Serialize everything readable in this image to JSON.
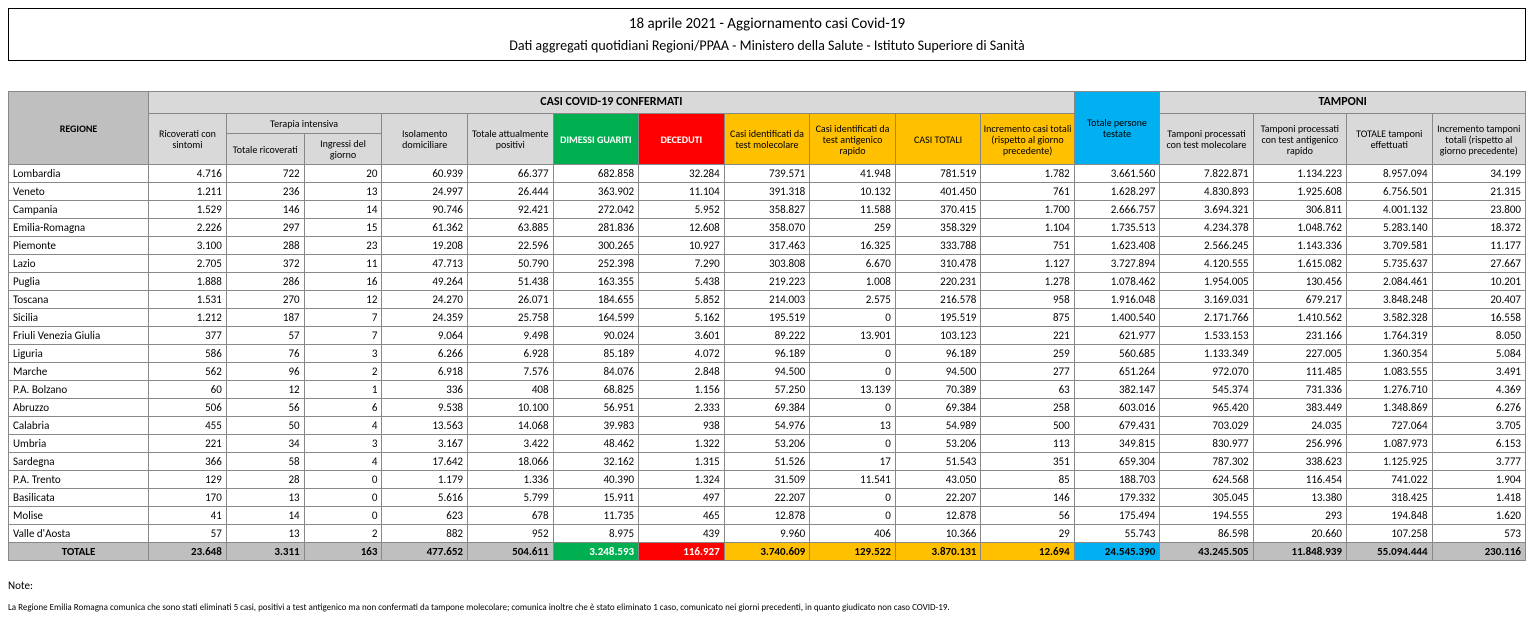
{
  "header": {
    "title": "18 aprile 2021 - Aggiornamento casi Covid-19",
    "subtitle": "Dati aggregati quotidiani Regioni/PPAA - Ministero della Salute - Istituto Superiore di Sanità"
  },
  "columns": {
    "regione_label": "REGIONE",
    "group_casi": "CASI COVID-19 CONFERMATI",
    "group_tamponi": "TAMPONI",
    "terapia_intensiva": "Terapia intensiva",
    "ricoverati": "Ricoverati con sintomi",
    "ti_totale": "Totale ricoverati",
    "ti_ingressi": "Ingressi del giorno",
    "isolamento": "Isolamento domiciliare",
    "positivi": "Totale attualmente positivi",
    "dimessi": "DIMESSI GUARITI",
    "deceduti": "DECEDUTI",
    "casi_mol": "Casi identificati da test molecolare",
    "casi_ant": "Casi identificati da test antigenico rapido",
    "casi_tot": "CASI TOTALI",
    "incremento": "Incremento casi totali (rispetto al giorno precedente)",
    "persone": "Totale persone testate",
    "tamp_mol": "Tamponi processati con test molecolare",
    "tamp_ant": "Tamponi processati con test antigenico rapido",
    "tamp_tot": "TOTALE tamponi effettuati",
    "tamp_inc": "Incremento tamponi totali (rispetto al giorno precedente)"
  },
  "rows": [
    {
      "region": "Lombardia",
      "v": [
        "4.716",
        "722",
        "20",
        "60.939",
        "66.377",
        "682.858",
        "32.284",
        "739.571",
        "41.948",
        "781.519",
        "1.782",
        "3.661.560",
        "7.822.871",
        "1.134.223",
        "8.957.094",
        "34.199"
      ]
    },
    {
      "region": "Veneto",
      "v": [
        "1.211",
        "236",
        "13",
        "24.997",
        "26.444",
        "363.902",
        "11.104",
        "391.318",
        "10.132",
        "401.450",
        "761",
        "1.628.297",
        "4.830.893",
        "1.925.608",
        "6.756.501",
        "21.315"
      ]
    },
    {
      "region": "Campania",
      "v": [
        "1.529",
        "146",
        "14",
        "90.746",
        "92.421",
        "272.042",
        "5.952",
        "358.827",
        "11.588",
        "370.415",
        "1.700",
        "2.666.757",
        "3.694.321",
        "306.811",
        "4.001.132",
        "23.800"
      ]
    },
    {
      "region": "Emilia-Romagna",
      "v": [
        "2.226",
        "297",
        "15",
        "61.362",
        "63.885",
        "281.836",
        "12.608",
        "358.070",
        "259",
        "358.329",
        "1.104",
        "1.735.513",
        "4.234.378",
        "1.048.762",
        "5.283.140",
        "18.372"
      ]
    },
    {
      "region": "Piemonte",
      "v": [
        "3.100",
        "288",
        "23",
        "19.208",
        "22.596",
        "300.265",
        "10.927",
        "317.463",
        "16.325",
        "333.788",
        "751",
        "1.623.408",
        "2.566.245",
        "1.143.336",
        "3.709.581",
        "11.177"
      ]
    },
    {
      "region": "Lazio",
      "v": [
        "2.705",
        "372",
        "11",
        "47.713",
        "50.790",
        "252.398",
        "7.290",
        "303.808",
        "6.670",
        "310.478",
        "1.127",
        "3.727.894",
        "4.120.555",
        "1.615.082",
        "5.735.637",
        "27.667"
      ]
    },
    {
      "region": "Puglia",
      "v": [
        "1.888",
        "286",
        "16",
        "49.264",
        "51.438",
        "163.355",
        "5.438",
        "219.223",
        "1.008",
        "220.231",
        "1.278",
        "1.078.462",
        "1.954.005",
        "130.456",
        "2.084.461",
        "10.201"
      ]
    },
    {
      "region": "Toscana",
      "v": [
        "1.531",
        "270",
        "12",
        "24.270",
        "26.071",
        "184.655",
        "5.852",
        "214.003",
        "2.575",
        "216.578",
        "958",
        "1.916.048",
        "3.169.031",
        "679.217",
        "3.848.248",
        "20.407"
      ]
    },
    {
      "region": "Sicilia",
      "v": [
        "1.212",
        "187",
        "7",
        "24.359",
        "25.758",
        "164.599",
        "5.162",
        "195.519",
        "0",
        "195.519",
        "875",
        "1.400.540",
        "2.171.766",
        "1.410.562",
        "3.582.328",
        "16.558"
      ]
    },
    {
      "region": "Friuli Venezia Giulia",
      "v": [
        "377",
        "57",
        "7",
        "9.064",
        "9.498",
        "90.024",
        "3.601",
        "89.222",
        "13.901",
        "103.123",
        "221",
        "621.977",
        "1.533.153",
        "231.166",
        "1.764.319",
        "8.050"
      ]
    },
    {
      "region": "Liguria",
      "v": [
        "586",
        "76",
        "3",
        "6.266",
        "6.928",
        "85.189",
        "4.072",
        "96.189",
        "0",
        "96.189",
        "259",
        "560.685",
        "1.133.349",
        "227.005",
        "1.360.354",
        "5.084"
      ]
    },
    {
      "region": "Marche",
      "v": [
        "562",
        "96",
        "2",
        "6.918",
        "7.576",
        "84.076",
        "2.848",
        "94.500",
        "0",
        "94.500",
        "277",
        "651.264",
        "972.070",
        "111.485",
        "1.083.555",
        "3.491"
      ]
    },
    {
      "region": "P.A. Bolzano",
      "v": [
        "60",
        "12",
        "1",
        "336",
        "408",
        "68.825",
        "1.156",
        "57.250",
        "13.139",
        "70.389",
        "63",
        "382.147",
        "545.374",
        "731.336",
        "1.276.710",
        "4.369"
      ]
    },
    {
      "region": "Abruzzo",
      "v": [
        "506",
        "56",
        "6",
        "9.538",
        "10.100",
        "56.951",
        "2.333",
        "69.384",
        "0",
        "69.384",
        "258",
        "603.016",
        "965.420",
        "383.449",
        "1.348.869",
        "6.276"
      ]
    },
    {
      "region": "Calabria",
      "v": [
        "455",
        "50",
        "4",
        "13.563",
        "14.068",
        "39.983",
        "938",
        "54.976",
        "13",
        "54.989",
        "500",
        "679.431",
        "703.029",
        "24.035",
        "727.064",
        "3.705"
      ]
    },
    {
      "region": "Umbria",
      "v": [
        "221",
        "34",
        "3",
        "3.167",
        "3.422",
        "48.462",
        "1.322",
        "53.206",
        "0",
        "53.206",
        "113",
        "349.815",
        "830.977",
        "256.996",
        "1.087.973",
        "6.153"
      ]
    },
    {
      "region": "Sardegna",
      "v": [
        "366",
        "58",
        "4",
        "17.642",
        "18.066",
        "32.162",
        "1.315",
        "51.526",
        "17",
        "51.543",
        "351",
        "659.304",
        "787.302",
        "338.623",
        "1.125.925",
        "3.777"
      ]
    },
    {
      "region": "P.A. Trento",
      "v": [
        "129",
        "28",
        "0",
        "1.179",
        "1.336",
        "40.390",
        "1.324",
        "31.509",
        "11.541",
        "43.050",
        "85",
        "188.703",
        "624.568",
        "116.454",
        "741.022",
        "1.904"
      ]
    },
    {
      "region": "Basilicata",
      "v": [
        "170",
        "13",
        "0",
        "5.616",
        "5.799",
        "15.911",
        "497",
        "22.207",
        "0",
        "22.207",
        "146",
        "179.332",
        "305.045",
        "13.380",
        "318.425",
        "1.418"
      ]
    },
    {
      "region": "Molise",
      "v": [
        "41",
        "14",
        "0",
        "623",
        "678",
        "11.735",
        "465",
        "12.878",
        "0",
        "12.878",
        "56",
        "175.494",
        "194.555",
        "293",
        "194.848",
        "1.620"
      ]
    },
    {
      "region": "Valle d'Aosta",
      "v": [
        "57",
        "13",
        "2",
        "882",
        "952",
        "8.975",
        "439",
        "9.960",
        "406",
        "10.366",
        "29",
        "55.743",
        "86.598",
        "20.660",
        "107.258",
        "573"
      ]
    }
  ],
  "total": {
    "label": "TOTALE",
    "v": [
      "23.648",
      "3.311",
      "163",
      "477.652",
      "504.611",
      "3.248.593",
      "116.927",
      "3.740.609",
      "129.522",
      "3.870.131",
      "12.694",
      "24.545.390",
      "43.245.505",
      "11.848.939",
      "55.094.444",
      "230.116"
    ]
  },
  "notes": {
    "label": "Note:",
    "text": "La Regione Emilia Romagna comunica che sono stati eliminati 5 casi, positivi a test antigenico ma non confermati da tampone molecolare; comunica inoltre che è stato eliminato 1 caso, comunicato nei giorni precedenti, in quanto giudicato non caso COVID-19."
  },
  "style": {
    "colors": {
      "grey_light": "#d9d9d9",
      "grey_dark": "#bfbfbf",
      "green": "#00b050",
      "red": "#ff0000",
      "orange": "#ffc000",
      "blue": "#00b0f0"
    },
    "col_widths_pct": [
      9,
      5,
      5,
      5,
      5.5,
      5.5,
      5.5,
      5.5,
      5.5,
      5.5,
      5.5,
      6,
      5.5,
      6,
      6,
      5.5,
      6
    ],
    "col_color_class": [
      "",
      "",
      "",
      "",
      "",
      "",
      "c-green",
      "c-red",
      "c-orange",
      "c-orange",
      "c-orange",
      "c-orange",
      "c-blue",
      "",
      "",
      "",
      ""
    ]
  }
}
